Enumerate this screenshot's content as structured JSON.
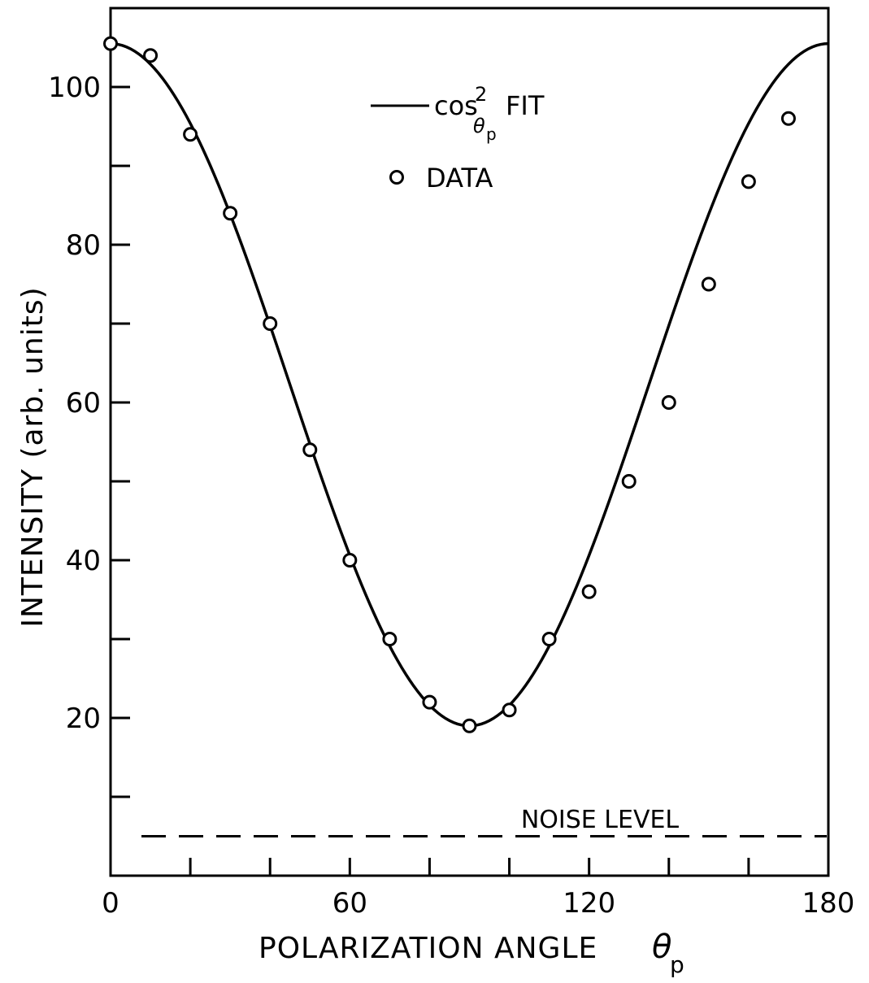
{
  "chart_data": {
    "type": "scatter",
    "title": "",
    "xlabel": "POLARIZATION ANGLE",
    "xlabel_symbol": "θ",
    "xlabel_subscript": "p",
    "ylabel": "INTENSITY (arb. units)",
    "xlim": [
      0,
      180
    ],
    "ylim": [
      0,
      110
    ],
    "xticks": [
      0,
      60,
      120,
      180
    ],
    "xtick_labels": [
      "0",
      "60",
      "120",
      "180"
    ],
    "x_minor_ticks": [
      20,
      40,
      80,
      100,
      140,
      160
    ],
    "yticks": [
      20,
      40,
      60,
      80,
      100
    ],
    "ytick_labels": [
      "20",
      "40",
      "60",
      "80",
      "100"
    ],
    "y_minor_ticks": [
      10,
      30,
      50,
      70,
      90
    ],
    "grid": false,
    "legend_position": "top-center",
    "legend": {
      "fit_label_prefix": "cos",
      "fit_label_sup": "2",
      "fit_label_sub_symbol": "θ",
      "fit_label_sub_sub": "p",
      "fit_label_suffix": "FIT",
      "data_label": "DATA"
    },
    "series": [
      {
        "kind": "fit_line",
        "formula": "y = 19 + 86.5*cos^2(x)",
        "offset": 19,
        "amplitude": 86.5
      },
      {
        "kind": "points",
        "x": [
          0,
          10,
          20,
          30,
          40,
          50,
          60,
          70,
          80,
          90,
          100,
          110,
          120,
          130,
          140,
          150,
          160,
          170
        ],
        "y": [
          105.5,
          104,
          94,
          84,
          70,
          54,
          40,
          30,
          22,
          19,
          21,
          30,
          36,
          50,
          60,
          75,
          88,
          96
        ]
      }
    ],
    "noise_level": {
      "label": "NOISE LEVEL",
      "value": 5
    }
  }
}
